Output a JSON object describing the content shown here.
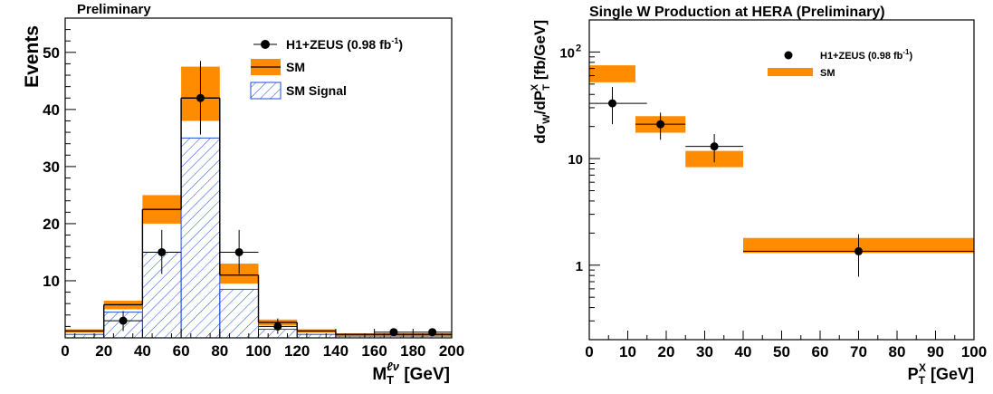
{
  "colors": {
    "sm": "#FF8C00",
    "signal": "#1E4FD8",
    "data": "#000000",
    "frame": "#000000"
  },
  "chart_data": [
    {
      "type": "bar",
      "title": "Preliminary",
      "xlabel": "M",
      "xlabel_sub": "T",
      "xlabel_sup": "ℓν",
      "xlabel_unit": " [GeV]",
      "ylabel": "Events",
      "xlim": [
        0,
        200
      ],
      "ylim": [
        0,
        56
      ],
      "xticks": [
        0,
        20,
        40,
        60,
        80,
        100,
        120,
        140,
        160,
        180,
        200
      ],
      "yticks": [
        10,
        20,
        30,
        40,
        50
      ],
      "bin_edges": [
        0,
        20,
        40,
        60,
        80,
        100,
        120,
        140,
        160,
        180,
        200
      ],
      "series": [
        {
          "name": "SM",
          "values": [
            1.2,
            5.8,
            22.5,
            42,
            11,
            2.7,
            1.2,
            0.6,
            0.6,
            0.6
          ],
          "unc_low": [
            0.9,
            5.0,
            20.0,
            38.0,
            9.5,
            2.2,
            0.9,
            0.4,
            0.4,
            0.4
          ],
          "unc_high": [
            1.5,
            6.5,
            25.0,
            47.5,
            13.0,
            3.2,
            1.5,
            0.8,
            0.8,
            0.8
          ]
        },
        {
          "name": "SM Signal",
          "values": [
            0.6,
            4.5,
            15,
            35,
            8.5,
            1.5,
            0.6,
            0.3,
            0.3,
            0.3
          ]
        },
        {
          "name": "H1+ZEUS (0.98 fb",
          "name_sup": "-1",
          "name_suffix": ")",
          "points": [
            {
              "x": 30,
              "y": 3,
              "yerr": [
                1.8,
                1.7
              ]
            },
            {
              "x": 50,
              "y": 15,
              "yerr": [
                3.8,
                3.9
              ]
            },
            {
              "x": 70,
              "y": 42,
              "yerr": [
                6.4,
                6.5
              ]
            },
            {
              "x": 90,
              "y": 15,
              "yerr": [
                3.8,
                3.9
              ]
            },
            {
              "x": 110,
              "y": 2,
              "yerr": [
                1.3,
                1.4
              ]
            },
            {
              "x": 170,
              "y": 1,
              "yerr": [
                0,
                0
              ]
            },
            {
              "x": 190,
              "y": 1,
              "yerr": [
                0,
                0
              ]
            }
          ]
        }
      ],
      "legend": "top-right"
    },
    {
      "type": "scatter",
      "title": "Single W Production at HERA (Preliminary)",
      "xlabel": "P",
      "xlabel_sub": "T",
      "xlabel_sup": "X",
      "xlabel_unit": " [GeV]",
      "ylabel": "dσ/dP",
      "ylabel_prefix": "dσ",
      "ylabel_sub1": "W",
      "ylabel_mid": "/dP",
      "ylabel_sub2": "T",
      "ylabel_sup2": "X",
      "ylabel_unit": " [fb/GeV]",
      "xlim": [
        0,
        100
      ],
      "ylim": [
        0.2,
        200
      ],
      "yscale": "log",
      "xticks": [
        0,
        10,
        20,
        30,
        40,
        50,
        60,
        70,
        80,
        90,
        100
      ],
      "ytick_labels": [
        {
          "value": 1,
          "label": "1"
        },
        {
          "value": 10,
          "label": "10"
        },
        {
          "value": 100,
          "label": "10",
          "sup": "2"
        }
      ],
      "series": [
        {
          "name": "SM",
          "bins": [
            {
              "x0": 0,
              "x1": 12,
              "low": 52,
              "high": 75
            },
            {
              "x0": 12,
              "x1": 25,
              "low": 17.5,
              "high": 25
            },
            {
              "x0": 25,
              "x1": 40,
              "low": 8.3,
              "high": 11.8
            },
            {
              "x0": 40,
              "x1": 100,
              "low": 1.3,
              "high": 1.8
            }
          ]
        },
        {
          "name": "H1+ZEUS (0.98 fb",
          "name_sup": "-1",
          "name_suffix": ")",
          "points": [
            {
              "x": 6,
              "x0": 0,
              "x1": 15,
              "y": 33,
              "ylow": 21,
              "yhigh": 47
            },
            {
              "x": 18.5,
              "x0": 12,
              "x1": 25,
              "y": 21,
              "ylow": 15,
              "yhigh": 27
            },
            {
              "x": 32.5,
              "x0": 25,
              "x1": 40,
              "y": 13,
              "ylow": 9.2,
              "yhigh": 17
            },
            {
              "x": 70,
              "x0": 40,
              "x1": 100,
              "y": 1.35,
              "ylow": 0.78,
              "yhigh": 1.95
            }
          ]
        }
      ],
      "legend": "top-right"
    }
  ]
}
